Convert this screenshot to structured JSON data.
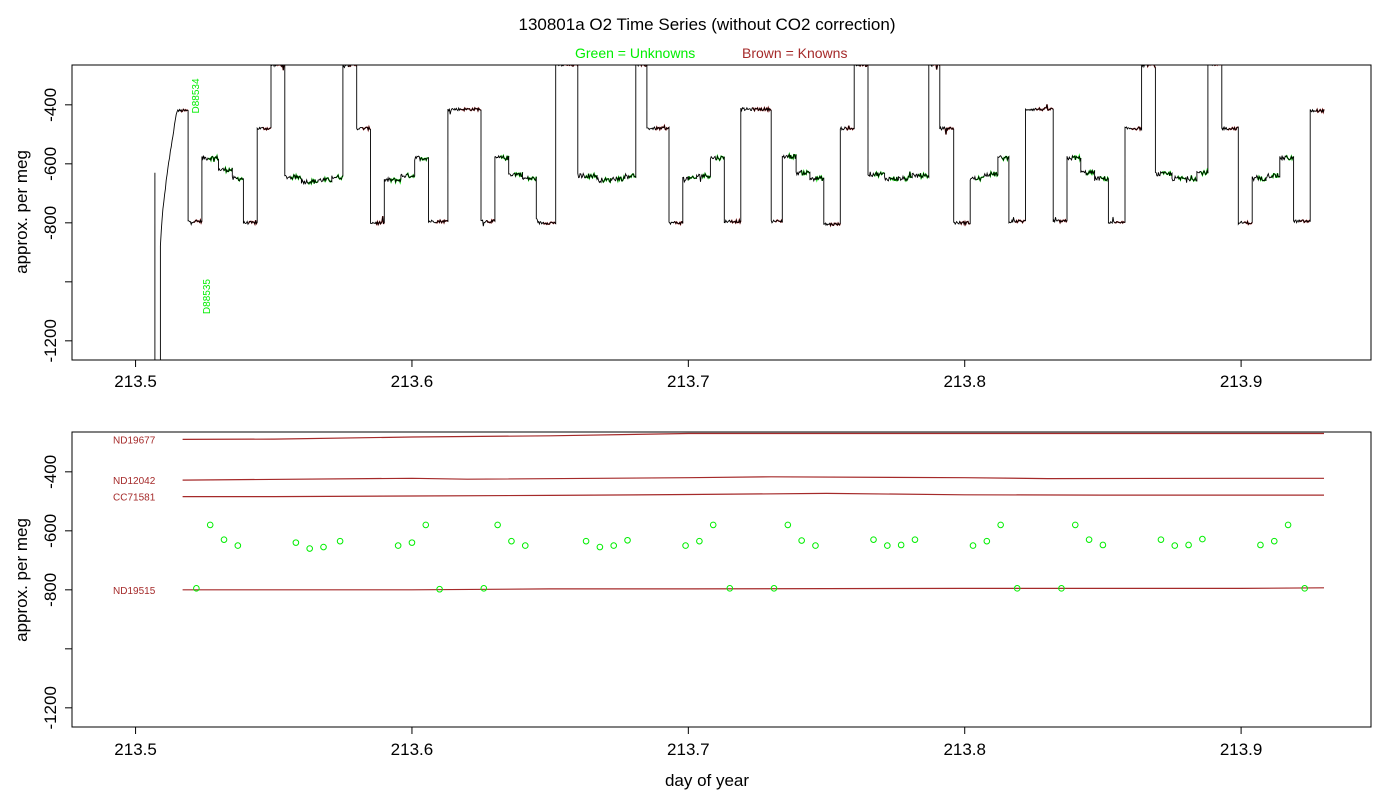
{
  "title": "130801a   O2 Time Series (without CO2 correction)",
  "legend": {
    "unknowns": "Green = Unknowns",
    "knowns": "Brown = Knowns",
    "unknowns_color": "#00ee00",
    "knowns_color": "#a52a2a"
  },
  "chart_data": [
    {
      "type": "line",
      "panel": "top",
      "title": "130801a   O2 Time Series (without CO2 correction)",
      "xlabel": "",
      "ylabel": "approx. per meg",
      "xlim": [
        213.477,
        213.947
      ],
      "ylim": [
        -1265,
        -265
      ],
      "y_reversed": true,
      "x_ticks": [
        213.5,
        213.6,
        213.7,
        213.8,
        213.9
      ],
      "x_tick_labels": [
        "213.5",
        "213.6",
        "213.7",
        "213.8",
        "213.9"
      ],
      "y_ticks": [
        -400,
        -600,
        -800,
        -1000,
        -1200
      ],
      "y_tick_labels": [
        "-400",
        "-600",
        "-800",
        "",
        "-1200"
      ],
      "grid": false,
      "annotations": [
        {
          "text": "D88534",
          "x": 213.523,
          "y": -370,
          "color": "#00ee00"
        },
        {
          "text": "D88535",
          "x": 213.527,
          "y": -1050,
          "color": "#00ee00"
        }
      ],
      "spikes": [
        {
          "x": 213.507,
          "from": -630,
          "to": -1265
        },
        {
          "x": 213.509,
          "from": -1265,
          "to": -880
        }
      ],
      "segments": [
        {
          "x0": 213.515,
          "x1": 213.519,
          "y": -420,
          "kind": "known"
        },
        {
          "x0": 213.519,
          "x1": 213.524,
          "y": -795,
          "kind": "known"
        },
        {
          "x0": 213.524,
          "x1": 213.53,
          "y": -580,
          "kind": "unknown"
        },
        {
          "x0": 213.53,
          "x1": 213.535,
          "y": -620,
          "kind": "unknown"
        },
        {
          "x0": 213.535,
          "x1": 213.539,
          "y": -650,
          "kind": "unknown"
        },
        {
          "x0": 213.539,
          "x1": 213.544,
          "y": -800,
          "kind": "known"
        },
        {
          "x0": 213.544,
          "x1": 213.549,
          "y": -480,
          "kind": "known"
        },
        {
          "x0": 213.549,
          "x1": 213.554,
          "y": -265,
          "kind": "known"
        },
        {
          "x0": 213.554,
          "x1": 213.56,
          "y": -645,
          "kind": "unknown"
        },
        {
          "x0": 213.56,
          "x1": 213.566,
          "y": -660,
          "kind": "unknown"
        },
        {
          "x0": 213.566,
          "x1": 213.571,
          "y": -655,
          "kind": "unknown"
        },
        {
          "x0": 213.571,
          "x1": 213.575,
          "y": -645,
          "kind": "unknown"
        },
        {
          "x0": 213.575,
          "x1": 213.58,
          "y": -265,
          "kind": "known"
        },
        {
          "x0": 213.58,
          "x1": 213.585,
          "y": -480,
          "kind": "known"
        },
        {
          "x0": 213.585,
          "x1": 213.59,
          "y": -800,
          "kind": "known"
        },
        {
          "x0": 213.59,
          "x1": 213.596,
          "y": -655,
          "kind": "unknown"
        },
        {
          "x0": 213.596,
          "x1": 213.601,
          "y": -640,
          "kind": "unknown"
        },
        {
          "x0": 213.601,
          "x1": 213.606,
          "y": -580,
          "kind": "unknown"
        },
        {
          "x0": 213.606,
          "x1": 213.613,
          "y": -795,
          "kind": "known"
        },
        {
          "x0": 213.613,
          "x1": 213.625,
          "y": -415,
          "kind": "known"
        },
        {
          "x0": 213.625,
          "x1": 213.63,
          "y": -795,
          "kind": "known"
        },
        {
          "x0": 213.63,
          "x1": 213.635,
          "y": -580,
          "kind": "unknown"
        },
        {
          "x0": 213.635,
          "x1": 213.64,
          "y": -635,
          "kind": "unknown"
        },
        {
          "x0": 213.64,
          "x1": 213.645,
          "y": -650,
          "kind": "unknown"
        },
        {
          "x0": 213.645,
          "x1": 213.652,
          "y": -800,
          "kind": "known"
        },
        {
          "x0": 213.652,
          "x1": 213.66,
          "y": -265,
          "kind": "known"
        },
        {
          "x0": 213.66,
          "x1": 213.667,
          "y": -640,
          "kind": "unknown"
        },
        {
          "x0": 213.667,
          "x1": 213.672,
          "y": -655,
          "kind": "unknown"
        },
        {
          "x0": 213.672,
          "x1": 213.677,
          "y": -650,
          "kind": "unknown"
        },
        {
          "x0": 213.677,
          "x1": 213.681,
          "y": -640,
          "kind": "unknown"
        },
        {
          "x0": 213.681,
          "x1": 213.685,
          "y": -265,
          "kind": "known"
        },
        {
          "x0": 213.685,
          "x1": 213.693,
          "y": -480,
          "kind": "known"
        },
        {
          "x0": 213.693,
          "x1": 213.698,
          "y": -800,
          "kind": "known"
        },
        {
          "x0": 213.698,
          "x1": 213.703,
          "y": -650,
          "kind": "unknown"
        },
        {
          "x0": 213.703,
          "x1": 213.708,
          "y": -640,
          "kind": "unknown"
        },
        {
          "x0": 213.708,
          "x1": 213.713,
          "y": -580,
          "kind": "unknown"
        },
        {
          "x0": 213.713,
          "x1": 213.719,
          "y": -795,
          "kind": "known"
        },
        {
          "x0": 213.719,
          "x1": 213.73,
          "y": -415,
          "kind": "known"
        },
        {
          "x0": 213.73,
          "x1": 213.734,
          "y": -795,
          "kind": "known"
        },
        {
          "x0": 213.734,
          "x1": 213.739,
          "y": -575,
          "kind": "unknown"
        },
        {
          "x0": 213.739,
          "x1": 213.744,
          "y": -630,
          "kind": "unknown"
        },
        {
          "x0": 213.744,
          "x1": 213.749,
          "y": -650,
          "kind": "unknown"
        },
        {
          "x0": 213.749,
          "x1": 213.755,
          "y": -805,
          "kind": "known"
        },
        {
          "x0": 213.755,
          "x1": 213.76,
          "y": -480,
          "kind": "known"
        },
        {
          "x0": 213.76,
          "x1": 213.765,
          "y": -265,
          "kind": "known"
        },
        {
          "x0": 213.765,
          "x1": 213.771,
          "y": -635,
          "kind": "unknown"
        },
        {
          "x0": 213.771,
          "x1": 213.776,
          "y": -650,
          "kind": "unknown"
        },
        {
          "x0": 213.776,
          "x1": 213.781,
          "y": -650,
          "kind": "unknown"
        },
        {
          "x0": 213.781,
          "x1": 213.787,
          "y": -640,
          "kind": "unknown"
        },
        {
          "x0": 213.787,
          "x1": 213.791,
          "y": -265,
          "kind": "known"
        },
        {
          "x0": 213.791,
          "x1": 213.796,
          "y": -480,
          "kind": "known"
        },
        {
          "x0": 213.796,
          "x1": 213.802,
          "y": -800,
          "kind": "known"
        },
        {
          "x0": 213.802,
          "x1": 213.807,
          "y": -650,
          "kind": "unknown"
        },
        {
          "x0": 213.807,
          "x1": 213.812,
          "y": -635,
          "kind": "unknown"
        },
        {
          "x0": 213.812,
          "x1": 213.816,
          "y": -580,
          "kind": "unknown"
        },
        {
          "x0": 213.816,
          "x1": 213.822,
          "y": -795,
          "kind": "known"
        },
        {
          "x0": 213.822,
          "x1": 213.832,
          "y": -415,
          "kind": "known"
        },
        {
          "x0": 213.832,
          "x1": 213.837,
          "y": -795,
          "kind": "known"
        },
        {
          "x0": 213.837,
          "x1": 213.842,
          "y": -580,
          "kind": "unknown"
        },
        {
          "x0": 213.842,
          "x1": 213.847,
          "y": -630,
          "kind": "unknown"
        },
        {
          "x0": 213.847,
          "x1": 213.852,
          "y": -650,
          "kind": "unknown"
        },
        {
          "x0": 213.852,
          "x1": 213.858,
          "y": -800,
          "kind": "known"
        },
        {
          "x0": 213.858,
          "x1": 213.864,
          "y": -480,
          "kind": "known"
        },
        {
          "x0": 213.864,
          "x1": 213.869,
          "y": -265,
          "kind": "known"
        },
        {
          "x0": 213.869,
          "x1": 213.875,
          "y": -635,
          "kind": "unknown"
        },
        {
          "x0": 213.875,
          "x1": 213.88,
          "y": -650,
          "kind": "unknown"
        },
        {
          "x0": 213.88,
          "x1": 213.884,
          "y": -650,
          "kind": "unknown"
        },
        {
          "x0": 213.884,
          "x1": 213.888,
          "y": -630,
          "kind": "unknown"
        },
        {
          "x0": 213.888,
          "x1": 213.893,
          "y": -265,
          "kind": "known"
        },
        {
          "x0": 213.893,
          "x1": 213.899,
          "y": -480,
          "kind": "known"
        },
        {
          "x0": 213.899,
          "x1": 213.904,
          "y": -800,
          "kind": "known"
        },
        {
          "x0": 213.904,
          "x1": 213.909,
          "y": -650,
          "kind": "unknown"
        },
        {
          "x0": 213.909,
          "x1": 213.914,
          "y": -640,
          "kind": "unknown"
        },
        {
          "x0": 213.914,
          "x1": 213.919,
          "y": -580,
          "kind": "unknown"
        },
        {
          "x0": 213.919,
          "x1": 213.925,
          "y": -795,
          "kind": "known"
        },
        {
          "x0": 213.925,
          "x1": 213.93,
          "y": -420,
          "kind": "known"
        }
      ]
    },
    {
      "type": "scatter",
      "panel": "bottom",
      "xlabel": "day of year",
      "ylabel": "approx. per meg",
      "xlim": [
        213.477,
        213.947
      ],
      "ylim": [
        -1265,
        -265
      ],
      "y_reversed": true,
      "x_ticks": [
        213.5,
        213.6,
        213.7,
        213.8,
        213.9
      ],
      "x_tick_labels": [
        "213.5",
        "213.6",
        "213.7",
        "213.8",
        "213.9"
      ],
      "y_ticks": [
        -400,
        -600,
        -800,
        -1000,
        -1200
      ],
      "y_tick_labels": [
        "-400",
        "-600",
        "-800",
        "",
        "-1200"
      ],
      "grid": false,
      "series": [
        {
          "name": "ND19677",
          "color": "#a52a2a",
          "x": [
            213.517,
            213.55,
            213.6,
            213.65,
            213.7,
            213.75,
            213.8,
            213.85,
            213.9,
            213.93
          ],
          "y": [
            -290,
            -289,
            -282,
            -278,
            -270,
            -270,
            -270,
            -270,
            -270,
            -270
          ]
        },
        {
          "name": "ND12042",
          "color": "#a52a2a",
          "x": [
            213.517,
            213.6,
            213.62,
            213.7,
            213.73,
            213.8,
            213.83,
            213.9,
            213.93
          ],
          "y": [
            -428,
            -422,
            -425,
            -420,
            -417,
            -420,
            -423,
            -422,
            -422
          ]
        },
        {
          "name": "CC71581",
          "color": "#a52a2a",
          "x": [
            213.517,
            213.55,
            213.6,
            213.65,
            213.7,
            213.75,
            213.8,
            213.85,
            213.9,
            213.93
          ],
          "y": [
            -484,
            -484,
            -482,
            -480,
            -477,
            -473,
            -478,
            -479,
            -479,
            -479
          ]
        },
        {
          "name": "ND19515",
          "color": "#a52a2a",
          "x": [
            213.517,
            213.6,
            213.65,
            213.7,
            213.75,
            213.8,
            213.85,
            213.9,
            213.93
          ],
          "y": [
            -800,
            -800,
            -797,
            -797,
            -796,
            -795,
            -795,
            -795,
            -793
          ]
        }
      ],
      "unknowns": {
        "color": "#00ee00",
        "x": [
          213.522,
          213.527,
          213.532,
          213.537,
          213.558,
          213.563,
          213.568,
          213.574,
          213.595,
          213.6,
          213.605,
          213.61,
          213.626,
          213.631,
          213.636,
          213.641,
          213.663,
          213.668,
          213.673,
          213.678,
          213.699,
          213.704,
          213.709,
          213.715,
          213.731,
          213.736,
          213.741,
          213.746,
          213.767,
          213.772,
          213.777,
          213.782,
          213.803,
          213.808,
          213.813,
          213.819,
          213.835,
          213.84,
          213.845,
          213.85,
          213.871,
          213.876,
          213.881,
          213.886,
          213.907,
          213.912,
          213.917,
          213.923
        ],
        "y": [
          -795,
          -580,
          -630,
          -650,
          -640,
          -660,
          -655,
          -635,
          -650,
          -640,
          -580,
          -798,
          -795,
          -580,
          -635,
          -650,
          -635,
          -655,
          -650,
          -632,
          -650,
          -635,
          -580,
          -795,
          -795,
          -580,
          -633,
          -650,
          -630,
          -650,
          -648,
          -630,
          -650,
          -635,
          -580,
          -795,
          -795,
          -580,
          -630,
          -648,
          -630,
          -650,
          -648,
          -628,
          -648,
          -635,
          -580,
          -795
        ]
      }
    }
  ]
}
